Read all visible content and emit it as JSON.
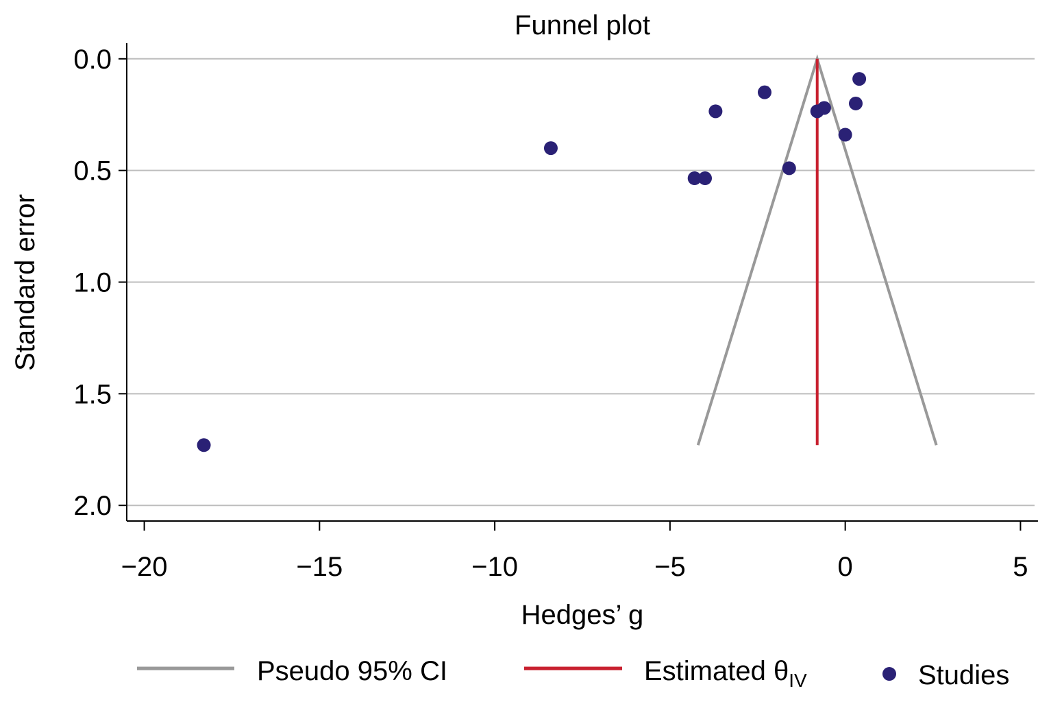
{
  "chart_data": {
    "type": "scatter",
    "title": "Funnel plot",
    "xlabel": "Hedges’ g",
    "ylabel": "Standard error",
    "xlim": [
      -20.5,
      5.5
    ],
    "ylim": [
      2.07,
      -0.07
    ],
    "y_inverted": true,
    "grid": "horizontal",
    "legend_position": "bottom",
    "x_ticks": [
      -20,
      -15,
      -10,
      -5,
      0,
      5
    ],
    "x_tick_labels": [
      "−20",
      "−15",
      "−10",
      "−5",
      "0",
      "5"
    ],
    "y_ticks": [
      0,
      0.5,
      1,
      1.5,
      2
    ],
    "y_tick_labels": [
      "0.0",
      "0.5",
      "1.0",
      "1.5",
      "2.0"
    ],
    "estimate": {
      "value": -0.8,
      "se_max": 1.73,
      "color": "#c8202f"
    },
    "ci": {
      "label": "Pseudo 95% CI",
      "color": "#999999",
      "apex": [
        -0.8,
        0
      ],
      "left_end": [
        -4.2,
        1.73
      ],
      "right_end": [
        2.6,
        1.73
      ]
    },
    "series": [
      {
        "name": "Studies",
        "color": "#2a2175",
        "points": [
          {
            "x": 0.4,
            "y": 0.09
          },
          {
            "x": -2.3,
            "y": 0.15
          },
          {
            "x": 0.3,
            "y": 0.2
          },
          {
            "x": -0.6,
            "y": 0.22
          },
          {
            "x": -0.8,
            "y": 0.235
          },
          {
            "x": -3.7,
            "y": 0.235
          },
          {
            "x": 0.0,
            "y": 0.34
          },
          {
            "x": -8.4,
            "y": 0.4
          },
          {
            "x": -1.6,
            "y": 0.49
          },
          {
            "x": -4.3,
            "y": 0.535
          },
          {
            "x": -4.0,
            "y": 0.535
          },
          {
            "x": -18.3,
            "y": 1.73
          }
        ]
      }
    ],
    "legend": {
      "ci_label": "Pseudo 95% CI",
      "estimate_label_main": "Estimated θ",
      "estimate_label_sub": "IV",
      "studies_label": "Studies"
    }
  }
}
